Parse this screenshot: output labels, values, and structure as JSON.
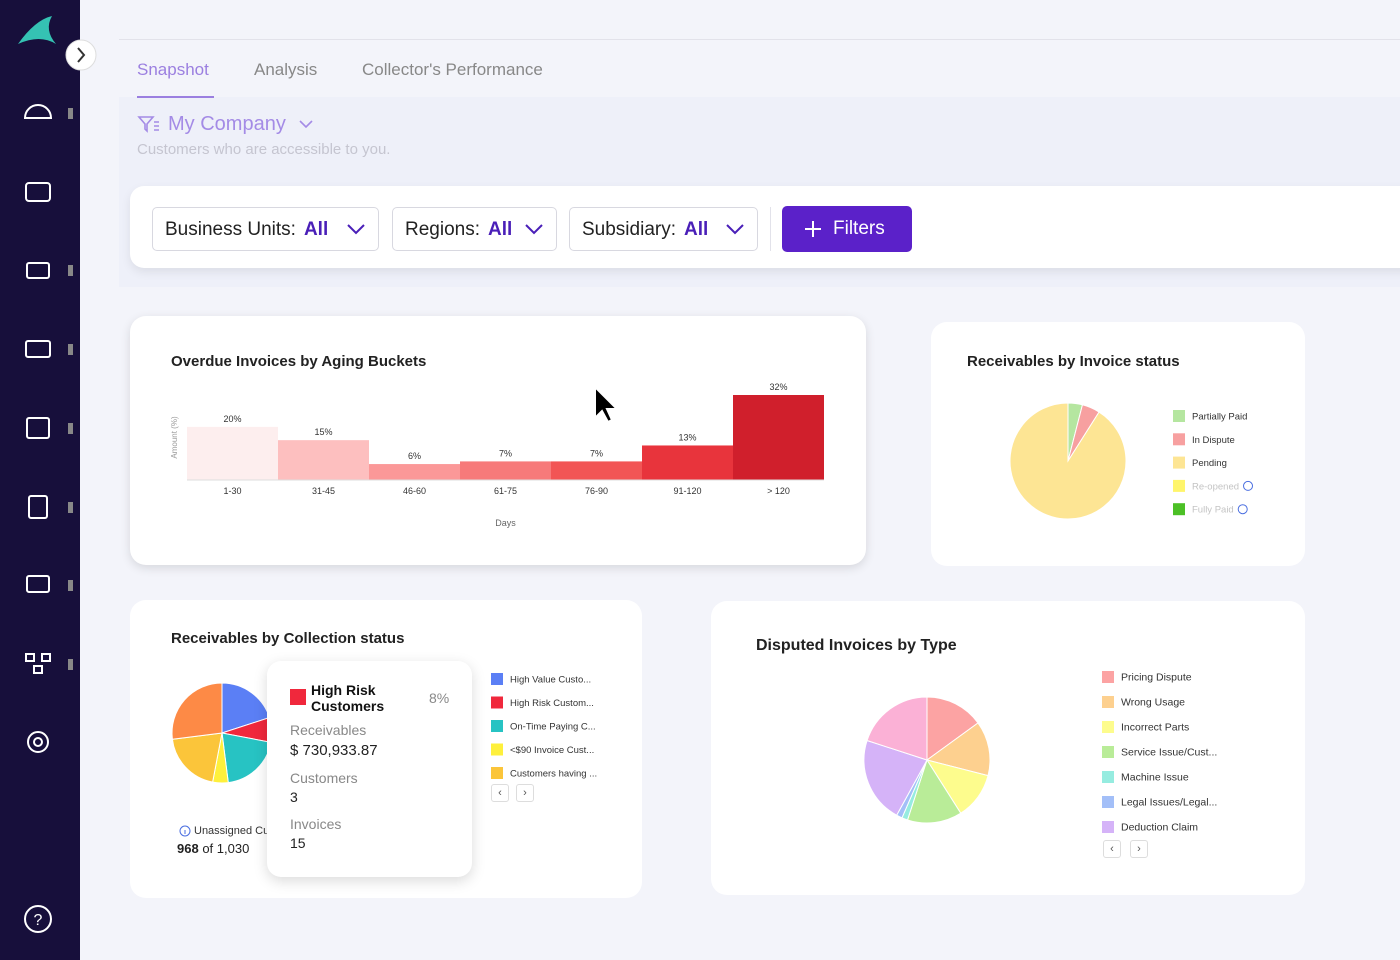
{
  "tabs": [
    "Snapshot",
    "Analysis",
    "Collector's Performance"
  ],
  "company": {
    "name": "My Company",
    "subtitle": "Customers who are accessible to you."
  },
  "filters": [
    {
      "label": "Business Units:",
      "value": "All"
    },
    {
      "label": "Regions:",
      "value": "All"
    },
    {
      "label": "Subsidiary:",
      "value": "All"
    }
  ],
  "filters_button": "Filters",
  "aging": {
    "type": "bar",
    "title": "Overdue Invoices by Aging Buckets",
    "x_label": "Days",
    "y_label": "Amount (%)",
    "categories": [
      "1-30",
      "31-45",
      "46-60",
      "61-75",
      "76-90",
      "91-120",
      "> 120"
    ],
    "values": [
      20,
      15,
      6,
      7,
      7,
      13,
      32
    ],
    "value_labels": [
      "20%",
      "15%",
      "6%",
      "7%",
      "7%",
      "13%",
      "32%"
    ],
    "colors": [
      "#fdeeee",
      "#fdbfbf",
      "#fb9898",
      "#f77a7a",
      "#f25555",
      "#e8343c",
      "#d01f2c"
    ]
  },
  "invoice_status": {
    "type": "pie",
    "title": "Receivables by Invoice status",
    "categories": [
      "Partially Paid",
      "In Dispute",
      "Pending",
      "Re-opened",
      "Fully Paid"
    ],
    "values": [
      4,
      5,
      91,
      0,
      0
    ],
    "colors": [
      "#b5e6a0",
      "#f7a0a0",
      "#fde594",
      "#fff56b",
      "#4cc026"
    ],
    "inactive": [
      false,
      false,
      false,
      true,
      true
    ]
  },
  "collection_status": {
    "type": "pie",
    "title": "Receivables by Collection status",
    "categories": [
      "High Value Custo...",
      "High Risk Custom...",
      "On-Time Paying C...",
      "<$90 Invoice Cust...",
      "Customers having ...",
      null
    ],
    "values": [
      20,
      8,
      20,
      5,
      20,
      27
    ],
    "colors": [
      "#5b7ff5",
      "#f0283c",
      "#27c3c3",
      "#fef03c",
      "#fbc53a",
      "#fd8a46"
    ],
    "unassigned": {
      "label": "Unassigned Cu",
      "count": 968,
      "total": "of 1,030"
    },
    "tooltip": {
      "title": "High Risk Customers",
      "share": "8%",
      "receivables_label": "Receivables",
      "receivables": "$ 730,933.87",
      "customers_label": "Customers",
      "customers": 3,
      "invoices_label": "Invoices",
      "invoices": 15
    }
  },
  "disputed": {
    "type": "pie",
    "title": "Disputed Invoices by Type",
    "categories": [
      "Pricing Dispute",
      "Wrong Usage",
      "Incorrect Parts",
      "Service Issue/Cust...",
      "Machine Issue",
      "Legal Issues/Legal...",
      "Deduction Claim",
      null
    ],
    "values": [
      15,
      14,
      12,
      14,
      1.5,
      1.5,
      22,
      20
    ],
    "colors": [
      "#fca3a3",
      "#fdd08f",
      "#fdfc8d",
      "#b9ec98",
      "#96ece0",
      "#a3bff8",
      "#d5b3f8",
      "#fbb1d6"
    ]
  }
}
